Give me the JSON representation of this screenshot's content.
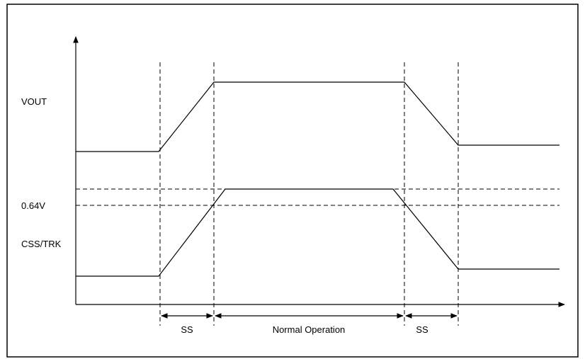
{
  "labels": {
    "vout": "VOUT",
    "threshold": "0.64V",
    "css_trk": "CSS/TRK"
  },
  "intervals": {
    "ss_rise": "SS",
    "normal": "Normal Operation",
    "ss_fall": "SS"
  },
  "colors": {
    "line": "#000000",
    "background": "#ffffff"
  }
}
